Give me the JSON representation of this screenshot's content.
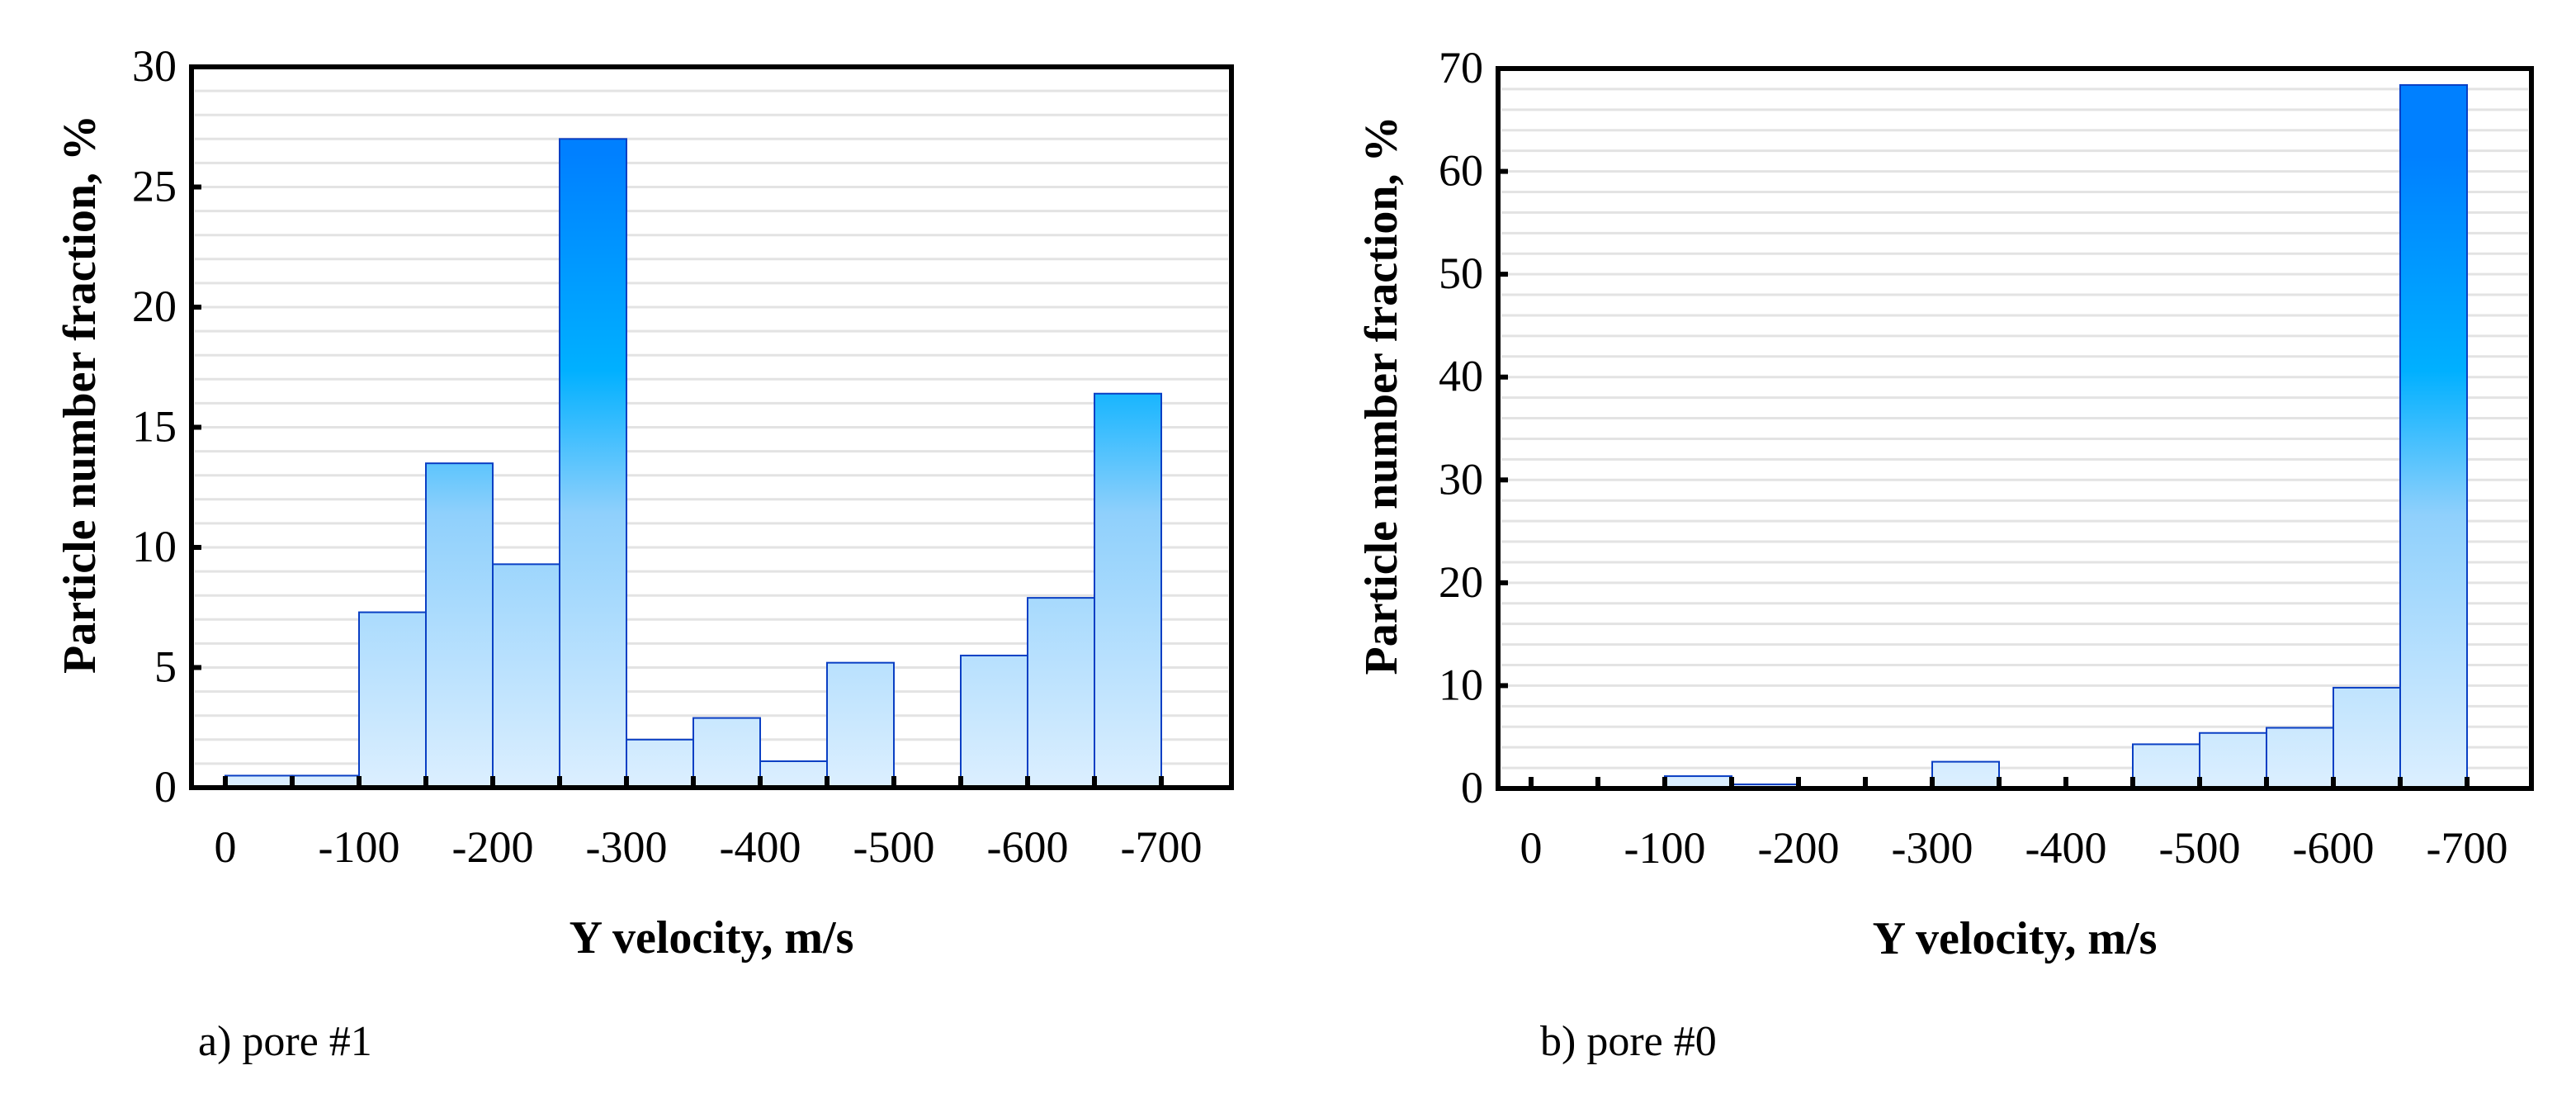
{
  "figure": {
    "panels": [
      {
        "id": "a",
        "caption": "a) pore #1"
      },
      {
        "id": "b",
        "caption": "b) pore #0"
      }
    ]
  },
  "colors": {
    "bar_top": "#0080ff",
    "bar_mid": "#00b0ff",
    "bar_low": "#8fd0fc",
    "bar_base": "#dcefff",
    "bar_edge": "#0a3fc4",
    "grid": "#e3e3e3",
    "axis": "#000000"
  },
  "chart_data": [
    {
      "type": "bar",
      "title": "a) pore #1",
      "xlabel": "Y velocity, m/s",
      "ylabel": "Particle number fraction, %",
      "ylim": [
        0,
        30
      ],
      "yticks": [
        0,
        5,
        10,
        15,
        20,
        25,
        30
      ],
      "xticks": [
        "0",
        "-100",
        "-200",
        "-300",
        "-400",
        "-500",
        "-600",
        "-700"
      ],
      "grid": true,
      "grid_step": 1,
      "bin_width": 50,
      "categories": [
        "0 to -50",
        "-50 to -100",
        "-100 to -150",
        "-150 to -200",
        "-200 to -250",
        "-250 to -300",
        "-300 to -350",
        "-350 to -400",
        "-400 to -450",
        "-450 to -500",
        "-500 to -550",
        "-550 to -600",
        "-600 to -650",
        "-650 to -700"
      ],
      "values": [
        0.5,
        0.5,
        7.3,
        13.5,
        9.3,
        27.0,
        2.0,
        2.9,
        1.1,
        5.2,
        0.0,
        5.5,
        7.9,
        16.4
      ]
    },
    {
      "type": "bar",
      "title": "b) pore #0",
      "xlabel": "Y velocity, m/s",
      "ylabel": "Particle number fraction, %",
      "ylim": [
        0,
        70
      ],
      "yticks": [
        0,
        10,
        20,
        30,
        40,
        50,
        60,
        70
      ],
      "xticks": [
        "0",
        "-100",
        "-200",
        "-300",
        "-400",
        "-500",
        "-600",
        "-700"
      ],
      "grid": true,
      "grid_step": 2,
      "bin_width": 50,
      "categories": [
        "0 to -50",
        "-50 to -100",
        "-100 to -150",
        "-150 to -200",
        "-200 to -250",
        "-250 to -300",
        "-300 to -350",
        "-350 to -400",
        "-400 to -450",
        "-450 to -500",
        "-500 to -550",
        "-550 to -600",
        "-600 to -650",
        "-650 to -700"
      ],
      "values": [
        0.0,
        0.0,
        1.2,
        0.4,
        0.0,
        0.0,
        2.6,
        0.0,
        0.0,
        4.3,
        5.4,
        5.9,
        9.8,
        68.4
      ]
    }
  ]
}
